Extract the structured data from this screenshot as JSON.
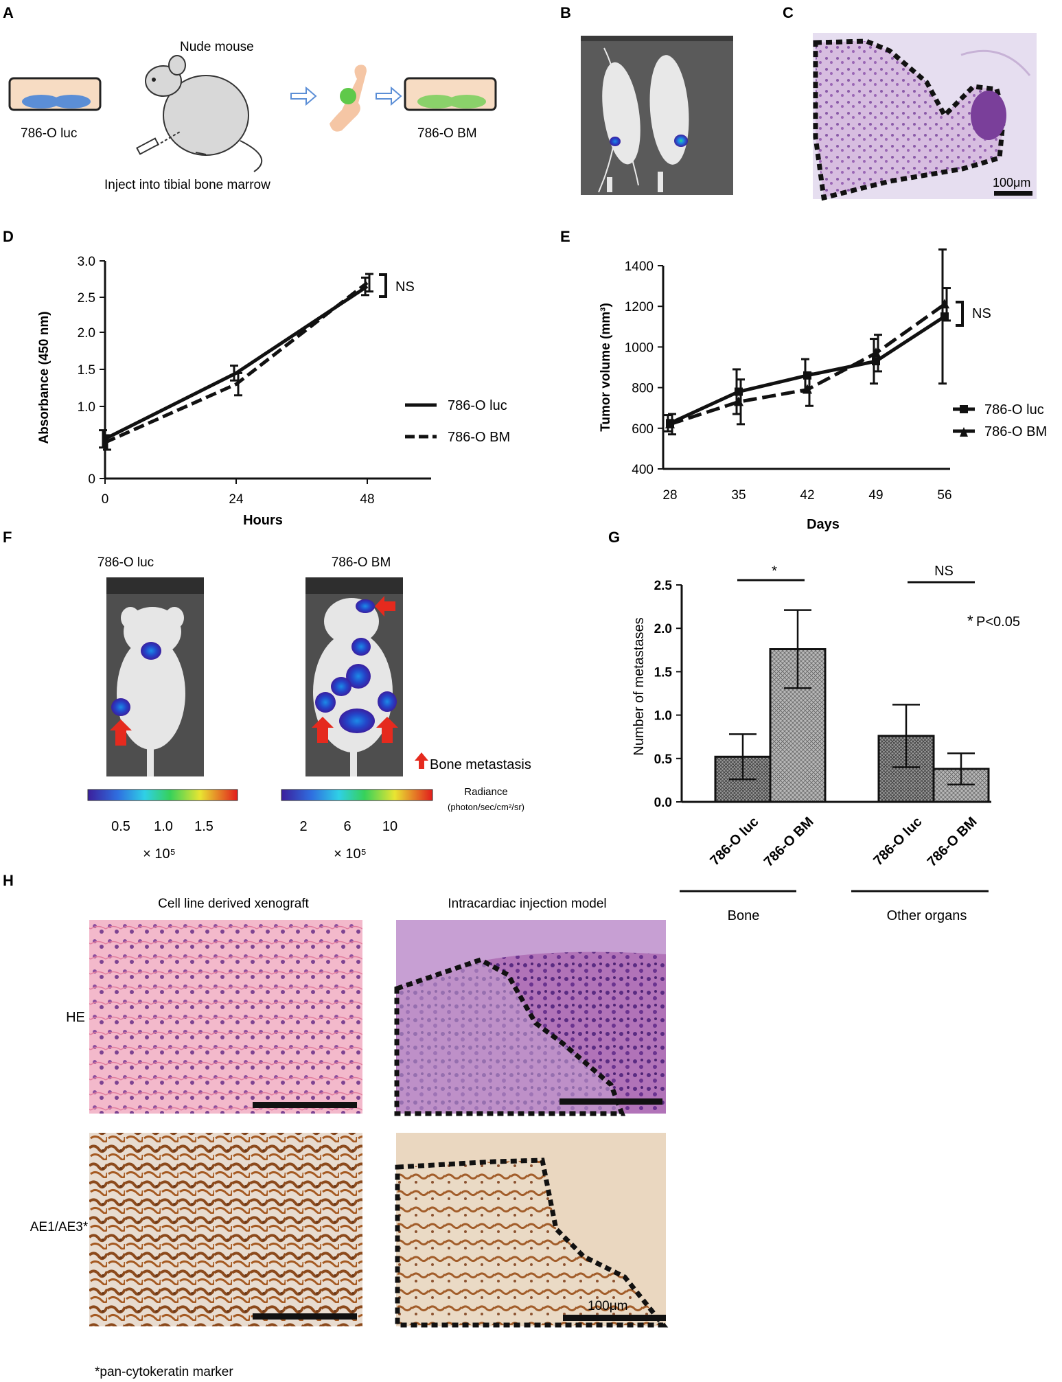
{
  "panels": {
    "A": {
      "letter": "A",
      "mouse_label": "Nude mouse",
      "dish1_label": "786-O luc",
      "dish2_label": "786-O BM",
      "caption": "Inject into tibial bone marrow",
      "colors": {
        "dish_fill": "#f7dcc3",
        "cells_blue": "#5b8ed6",
        "cells_green": "#8ad16a",
        "mouse": "#d8d8d8",
        "arrow": "#5b8ed6",
        "bone": "#f5c6a5"
      }
    },
    "B": {
      "letter": "B"
    },
    "C": {
      "letter": "C",
      "scale_label": "100μm"
    },
    "D": {
      "letter": "D"
    },
    "E": {
      "letter": "E"
    },
    "F": {
      "letter": "F",
      "title_left": "786-O luc",
      "title_right": "786-O BM",
      "legend_text": "Bone metastasis",
      "radiance_label": "Radiance",
      "radiance_unit": "(photon/sec/cm²/sr)",
      "left_scale_ticks": [
        "0.5",
        "1.0",
        "1.5"
      ],
      "right_scale_ticks": [
        "2",
        "6",
        "10"
      ],
      "multiplier": "× 10⁵"
    },
    "G": {
      "letter": "G"
    },
    "H": {
      "letter": "H",
      "col1_title": "Cell line derived xenograft",
      "col2_title": "Intracardiac injection model",
      "row1_label": "HE",
      "row2_label": "AE1/AE3*",
      "scale_label": "100μm",
      "footnote": "*pan-cytokeratin marker"
    }
  },
  "chart_data": [
    {
      "id": "D",
      "type": "line",
      "xlabel": "Hours",
      "ylabel": "Absorbance (450 nm)",
      "x": [
        0,
        24,
        48
      ],
      "x_ticks": [
        "0",
        "24",
        "48"
      ],
      "y_ticks": [
        "0",
        "1.0",
        "1.5",
        "2.0",
        "2.5",
        "3.0"
      ],
      "series": [
        {
          "name": "786-O  luc",
          "style": "solid",
          "values": [
            0.55,
            1.45,
            2.65
          ],
          "errors": [
            0.12,
            0.1,
            0.12
          ]
        },
        {
          "name": "786-O  BM",
          "style": "dashed",
          "values": [
            0.5,
            1.3,
            2.7
          ],
          "errors": [
            0.1,
            0.15,
            0.12
          ]
        }
      ],
      "annotation": "NS"
    },
    {
      "id": "E",
      "type": "line",
      "xlabel": "Days",
      "ylabel": "Tumor volume (mm³)",
      "x": [
        28,
        35,
        42,
        49,
        56
      ],
      "ylim": [
        400,
        1400
      ],
      "y_ticks": [
        "400",
        "600",
        "800",
        "1000",
        "1200",
        "1400"
      ],
      "series": [
        {
          "name": "786-O  luc",
          "style": "solid",
          "marker": "square",
          "values": [
            625,
            780,
            860,
            930,
            1150
          ],
          "errors": [
            40,
            110,
            80,
            110,
            330
          ]
        },
        {
          "name": "786-O  BM",
          "style": "dashed",
          "marker": "triangle",
          "values": [
            620,
            730,
            790,
            970,
            1210
          ],
          "errors": [
            50,
            110,
            80,
            90,
            80
          ]
        }
      ],
      "annotation": "NS"
    },
    {
      "id": "G",
      "type": "bar",
      "ylabel": "Number of metastases",
      "ylim": [
        0,
        2.5
      ],
      "y_ticks": [
        "0.0",
        "0.5",
        "1.0",
        "1.5",
        "2.0",
        "2.5"
      ],
      "categories": [
        "786-O luc",
        "786-O BM",
        "786-O luc",
        "786-O BM"
      ],
      "values": [
        0.52,
        1.76,
        0.76,
        0.38
      ],
      "errors": [
        0.26,
        0.45,
        0.36,
        0.18
      ],
      "groups": [
        "Bone",
        "Other organs"
      ],
      "sig_left": "*",
      "sig_right": "NS",
      "pvalue_star": "*",
      "pvalue_text": "P<0.05"
    }
  ]
}
